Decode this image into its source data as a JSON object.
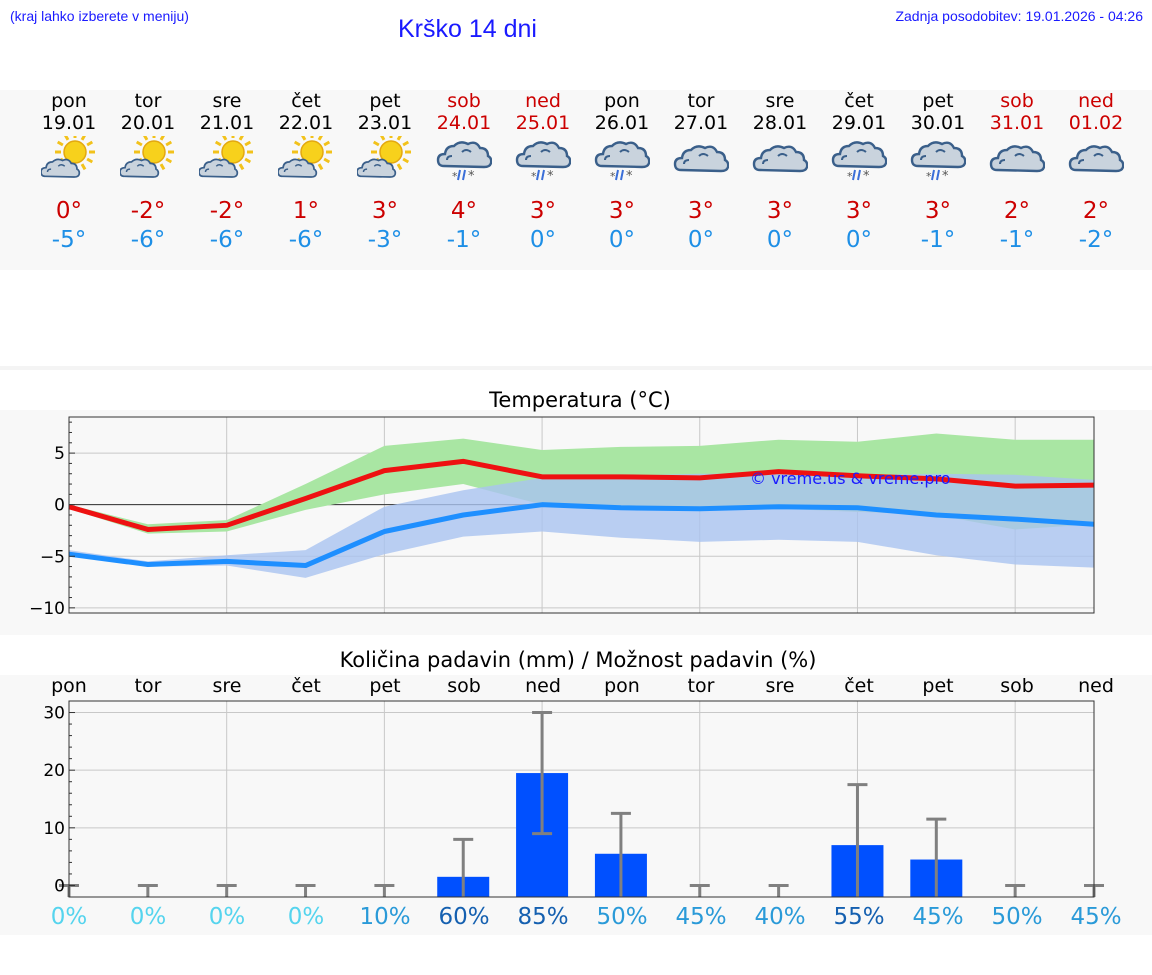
{
  "header": {
    "menu_hint": "(kraj lahko izberete v meniju)",
    "title": "Krško 14 dni",
    "updated": "Zadnja posodobitev: 19.01.2026 - 04:26"
  },
  "colors": {
    "weekday": "#000000",
    "weekend": "#cc0000",
    "tmax": "#cc0000",
    "tmin": "#1e8fe6",
    "max_line": "#ee1111",
    "min_line": "#1e8fff",
    "max_band": "#a9e6a3",
    "min_band": "#a9c3f0",
    "bar": "#0050ff",
    "errbar": "#808080"
  },
  "days": [
    {
      "name": "pon",
      "date": "19.01",
      "weekend": false,
      "icon": "sun-cloud-icon",
      "tmax": "0°",
      "tmin": "-5°"
    },
    {
      "name": "tor",
      "date": "20.01",
      "weekend": false,
      "icon": "sun-cloud-icon",
      "tmax": "-2°",
      "tmin": "-6°"
    },
    {
      "name": "sre",
      "date": "21.01",
      "weekend": false,
      "icon": "sun-cloud-icon",
      "tmax": "-2°",
      "tmin": "-6°"
    },
    {
      "name": "čet",
      "date": "22.01",
      "weekend": false,
      "icon": "sun-cloud-icon",
      "tmax": "1°",
      "tmin": "-6°"
    },
    {
      "name": "pet",
      "date": "23.01",
      "weekend": false,
      "icon": "sun-cloud-icon",
      "tmax": "3°",
      "tmin": "-3°"
    },
    {
      "name": "sob",
      "date": "24.01",
      "weekend": true,
      "icon": "sleet-cloud-icon",
      "tmax": "4°",
      "tmin": "-1°"
    },
    {
      "name": "ned",
      "date": "25.01",
      "weekend": true,
      "icon": "sleet-cloud-icon",
      "tmax": "3°",
      "tmin": "0°"
    },
    {
      "name": "pon",
      "date": "26.01",
      "weekend": false,
      "icon": "sleet-cloud-icon",
      "tmax": "3°",
      "tmin": "0°"
    },
    {
      "name": "tor",
      "date": "27.01",
      "weekend": false,
      "icon": "cloud-icon",
      "tmax": "3°",
      "tmin": "0°"
    },
    {
      "name": "sre",
      "date": "28.01",
      "weekend": false,
      "icon": "cloud-icon",
      "tmax": "3°",
      "tmin": "0°"
    },
    {
      "name": "čet",
      "date": "29.01",
      "weekend": false,
      "icon": "sleet-cloud-icon",
      "tmax": "3°",
      "tmin": "0°"
    },
    {
      "name": "pet",
      "date": "30.01",
      "weekend": false,
      "icon": "sleet-cloud-icon",
      "tmax": "3°",
      "tmin": "-1°"
    },
    {
      "name": "sob",
      "date": "31.01",
      "weekend": true,
      "icon": "cloud-icon",
      "tmax": "2°",
      "tmin": "-1°"
    },
    {
      "name": "ned",
      "date": "01.02",
      "weekend": true,
      "icon": "cloud-icon",
      "tmax": "2°",
      "tmin": "-2°"
    }
  ],
  "chart_data": [
    {
      "type": "line",
      "title": "Temperatura (°C)",
      "watermark": "© vreme.us & vreme.pro",
      "ylim": [
        -10.5,
        8.5
      ],
      "yticks": [
        5,
        0,
        -5,
        -10
      ],
      "ytick_labels": [
        "5",
        "0",
        "−5",
        "−10"
      ],
      "x": [
        0,
        1,
        2,
        3,
        4,
        5,
        6,
        7,
        8,
        9,
        10,
        11,
        12,
        13
      ],
      "series": [
        {
          "name": "max",
          "values": [
            -0.2,
            -2.4,
            -2.0,
            0.6,
            3.3,
            4.2,
            2.7,
            2.7,
            2.6,
            3.2,
            2.8,
            2.5,
            1.8,
            1.9
          ]
        },
        {
          "name": "min",
          "values": [
            -4.8,
            -5.8,
            -5.5,
            -5.9,
            -2.6,
            -1.0,
            0.0,
            -0.3,
            -0.4,
            -0.2,
            -0.3,
            -1.0,
            -1.4,
            -1.9
          ]
        }
      ],
      "bands": [
        {
          "name": "max_range",
          "low": [
            -0.4,
            -2.8,
            -2.6,
            -0.5,
            1.0,
            2.0,
            0.0,
            -0.2,
            -0.2,
            -0.4,
            -0.7,
            -1.0,
            -2.4,
            -1.9
          ],
          "high": [
            0.0,
            -1.9,
            -1.5,
            2.0,
            5.7,
            6.4,
            5.3,
            5.6,
            5.7,
            6.3,
            6.1,
            6.9,
            6.3,
            6.3
          ]
        },
        {
          "name": "min_range",
          "low": [
            -5.0,
            -6.0,
            -5.9,
            -7.1,
            -4.8,
            -3.1,
            -2.6,
            -3.2,
            -3.6,
            -3.4,
            -3.6,
            -4.9,
            -5.8,
            -6.1
          ],
          "high": [
            -4.4,
            -5.5,
            -4.9,
            -4.4,
            -0.2,
            1.4,
            2.6,
            2.8,
            3.0,
            3.0,
            2.9,
            3.0,
            2.9,
            2.4
          ]
        }
      ]
    },
    {
      "type": "bar",
      "title": "Količina padavin (mm) / Možnost padavin (%)",
      "categories": [
        "pon",
        "tor",
        "sre",
        "čet",
        "pet",
        "sob",
        "ned",
        "pon",
        "tor",
        "sre",
        "čet",
        "pet",
        "sob",
        "ned"
      ],
      "ylim": [
        -2,
        32
      ],
      "yticks": [
        30,
        20,
        10,
        0
      ],
      "values": [
        0,
        0,
        0,
        0,
        0,
        1.5,
        19.5,
        5.5,
        0,
        0,
        7,
        4.5,
        0,
        0
      ],
      "error_high": [
        0,
        0,
        0,
        0,
        0,
        8,
        30,
        12.5,
        0,
        0,
        17.5,
        11.5,
        0,
        0
      ],
      "error_low": [
        0,
        0,
        0,
        0,
        0,
        0,
        9,
        0,
        0,
        0,
        0,
        0,
        0,
        0
      ],
      "probability": [
        "0%",
        "0%",
        "0%",
        "0%",
        "10%",
        "60%",
        "85%",
        "50%",
        "45%",
        "40%",
        "55%",
        "45%",
        "50%",
        "45%"
      ],
      "probability_colors": [
        "#55d4ee",
        "#55d4ee",
        "#55d4ee",
        "#55d4ee",
        "#2a9ad8",
        "#1560b0",
        "#1560b0",
        "#2a9ad8",
        "#2a9ad8",
        "#2a9ad8",
        "#1560b0",
        "#2a9ad8",
        "#2a9ad8",
        "#2a9ad8"
      ]
    }
  ]
}
